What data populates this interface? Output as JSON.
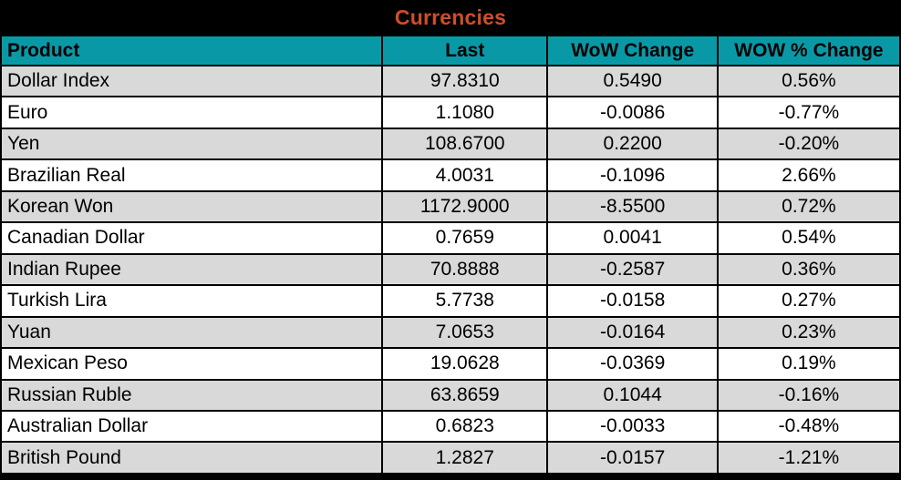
{
  "title": "Currencies",
  "colors": {
    "title_text": "#CE4E2B",
    "header_bg": "#0999A6",
    "header_text": "#000000",
    "row_stripe": "#D9D9D9",
    "row_plain": "#FFFFFF",
    "frame": "#000000"
  },
  "chart_data": {
    "type": "table",
    "title": "Currencies",
    "columns": [
      "Product",
      "Last",
      "WoW Change",
      "WOW % Change"
    ],
    "rows": [
      {
        "product": "Dollar Index",
        "last": "97.8310",
        "wow_change": "0.5490",
        "wow_pct_change": "0.56%"
      },
      {
        "product": "Euro",
        "last": "1.1080",
        "wow_change": "-0.0086",
        "wow_pct_change": "-0.77%"
      },
      {
        "product": "Yen",
        "last": "108.6700",
        "wow_change": "0.2200",
        "wow_pct_change": "-0.20%"
      },
      {
        "product": "Brazilian Real",
        "last": "4.0031",
        "wow_change": "-0.1096",
        "wow_pct_change": "2.66%"
      },
      {
        "product": "Korean Won",
        "last": "1172.9000",
        "wow_change": "-8.5500",
        "wow_pct_change": "0.72%"
      },
      {
        "product": "Canadian Dollar",
        "last": "0.7659",
        "wow_change": "0.0041",
        "wow_pct_change": "0.54%"
      },
      {
        "product": "Indian Rupee",
        "last": "70.8888",
        "wow_change": "-0.2587",
        "wow_pct_change": "0.36%"
      },
      {
        "product": "Turkish Lira",
        "last": "5.7738",
        "wow_change": "-0.0158",
        "wow_pct_change": "0.27%"
      },
      {
        "product": "Yuan",
        "last": "7.0653",
        "wow_change": "-0.0164",
        "wow_pct_change": "0.23%"
      },
      {
        "product": "Mexican Peso",
        "last": "19.0628",
        "wow_change": "-0.0369",
        "wow_pct_change": "0.19%"
      },
      {
        "product": "Russian Ruble",
        "last": "63.8659",
        "wow_change": "0.1044",
        "wow_pct_change": "-0.16%"
      },
      {
        "product": "Australian Dollar",
        "last": "0.6823",
        "wow_change": "-0.0033",
        "wow_pct_change": "-0.48%"
      },
      {
        "product": "British Pound",
        "last": "1.2827",
        "wow_change": "-0.0157",
        "wow_pct_change": "-1.21%"
      }
    ]
  }
}
